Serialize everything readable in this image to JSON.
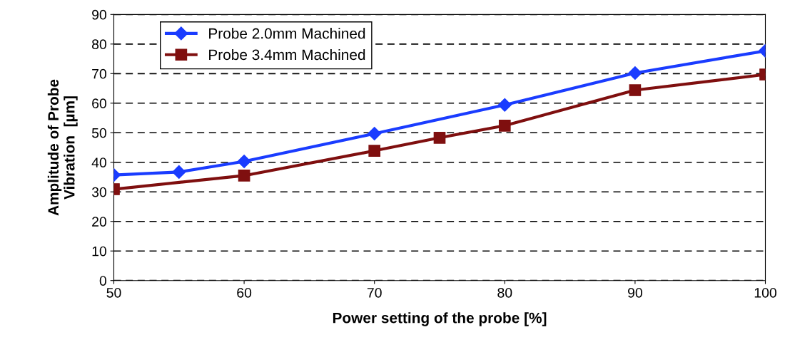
{
  "chart_data": {
    "type": "line",
    "xlabel": "Power setting of the probe [%]",
    "ylabel": "Amplitude of Probe\nVibration  [µm]",
    "xlim": [
      50,
      100
    ],
    "xticks": [
      50,
      60,
      70,
      80,
      90,
      100
    ],
    "ylim": [
      0,
      90
    ],
    "yticks": [
      0,
      10,
      20,
      30,
      40,
      50,
      60,
      70,
      80,
      90
    ],
    "grid": "y",
    "legend": "top left",
    "series": [
      {
        "name": "Probe 2.0mm Machined",
        "color": "#1a3cff",
        "marker": "diamond",
        "x": [
          50,
          55,
          60,
          70,
          80,
          90,
          100
        ],
        "values": [
          35.7,
          36.7,
          40.3,
          49.7,
          59.4,
          70.2,
          77.7
        ]
      },
      {
        "name": "Probe 3.4mm Machined",
        "color": "#7f0f0f",
        "marker": "square",
        "x": [
          50,
          60,
          70,
          75,
          80,
          90,
          100
        ],
        "values": [
          30.9,
          35.5,
          43.9,
          48.3,
          52.4,
          64.4,
          69.7
        ]
      }
    ]
  }
}
